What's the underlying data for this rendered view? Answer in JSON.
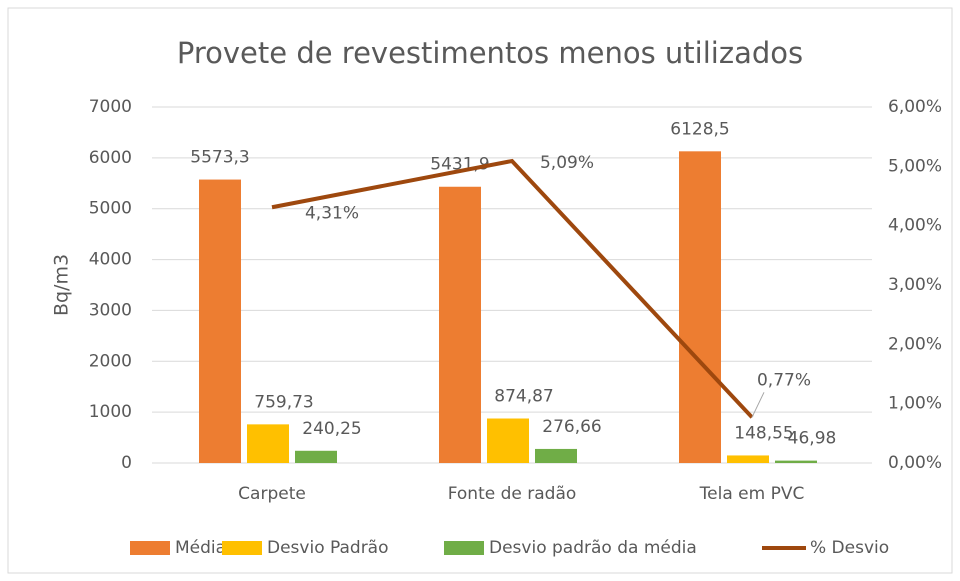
{
  "chart_data": {
    "type": "bar",
    "title": "Provete de revestimentos menos utilizados",
    "y_label": "Bq/m3",
    "categories": [
      "Carpete",
      "Fonte de radão",
      "Tela em PVC"
    ],
    "series": [
      {
        "name": "Média",
        "color": "#ED7D31",
        "values": [
          5573.3,
          5431.9,
          6128.5
        ],
        "value_labels": [
          "5573,3",
          "5431,9",
          "6128,5"
        ]
      },
      {
        "name": "Desvio Padrão",
        "color": "#FFC000",
        "values": [
          759.73,
          874.87,
          148.55
        ],
        "value_labels": [
          "759,73",
          "874,87",
          "148,55"
        ]
      },
      {
        "name": "Desvio padrão da média",
        "color": "#70AD47",
        "values": [
          240.25,
          276.66,
          46.98
        ],
        "value_labels": [
          "240,25",
          "276,66",
          "46,98"
        ]
      },
      {
        "name": "% Desvio",
        "color": "#9E480E",
        "type": "line",
        "axis": "y2",
        "values": [
          4.31,
          5.09,
          0.77
        ],
        "value_labels": [
          "4,31%",
          "5,09%",
          "0,77%"
        ]
      }
    ],
    "ylim": [
      0,
      7000
    ],
    "yticks": [
      0,
      1000,
      2000,
      3000,
      4000,
      5000,
      6000,
      7000
    ],
    "y2lim": [
      0,
      6
    ],
    "y2ticks": [
      {
        "value": 0,
        "label": "0,00%"
      },
      {
        "value": 1,
        "label": "1,00%"
      },
      {
        "value": 2,
        "label": "2,00%"
      },
      {
        "value": 3,
        "label": "3,00%"
      },
      {
        "value": 4,
        "label": "4,00%"
      },
      {
        "value": 5,
        "label": "5,00%"
      },
      {
        "value": 6,
        "label": "6,00%"
      }
    ],
    "grid": true,
    "legend": "bottom"
  }
}
